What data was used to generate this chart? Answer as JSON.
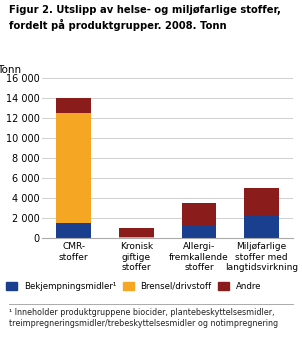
{
  "title": "Figur 2. Utslipp av helse- og miljøfarlige stoffer,\nfordelt på produktgrupper. 2008. Tonn",
  "ylabel": "Tonn",
  "ylim": [
    0,
    16000
  ],
  "yticks": [
    0,
    2000,
    4000,
    6000,
    8000,
    10000,
    12000,
    14000,
    16000
  ],
  "categories": [
    "CMR-\nstoffer",
    "Kronisk\ngiftige\nstoffer",
    "Allergi-\nfremkallende\nstoffer",
    "Miljøfarlige\nstoffer med\nlangtidsvirkning"
  ],
  "series": {
    "Bekjempningsmidler¹": [
      1500,
      50,
      1200,
      2200
    ],
    "Brensel/drivstoff": [
      11000,
      50,
      0,
      0
    ],
    "Andre": [
      1500,
      900,
      2300,
      2800
    ]
  },
  "colors": {
    "Bekjempningsmidler¹": "#1a3f8f",
    "Brensel/drivstoff": "#f5a623",
    "Andre": "#8b1c1c"
  },
  "footnote": "¹ Inneholder produktgruppene biocider, plantebeskyttelsesmidler,\ntreimpregneringsmidler/trebeskyttelsesmidler og notimpregnering",
  "background_color": "#ffffff",
  "grid_color": "#d0d0d0"
}
